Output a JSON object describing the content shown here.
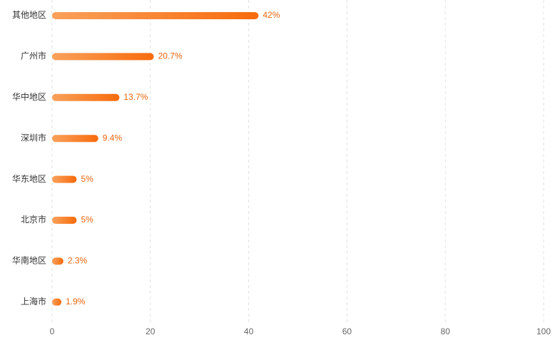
{
  "chart_data": {
    "type": "bar",
    "orientation": "horizontal",
    "categories": [
      "其他地区",
      "广州市",
      "华中地区",
      "深圳市",
      "华东地区",
      "北京市",
      "华南地区",
      "上海市"
    ],
    "values": [
      42,
      20.7,
      13.7,
      9.4,
      5,
      5,
      2.3,
      1.9
    ],
    "value_labels": [
      "42%",
      "20.7%",
      "13.7%",
      "9.4%",
      "5%",
      "5%",
      "2.3%",
      "1.9%"
    ],
    "colors": [
      "#f9a15b",
      "#f76b0c"
    ],
    "xlim": [
      0,
      100
    ],
    "xticks": [
      0,
      20,
      40,
      60,
      80,
      100
    ],
    "grid": true
  }
}
